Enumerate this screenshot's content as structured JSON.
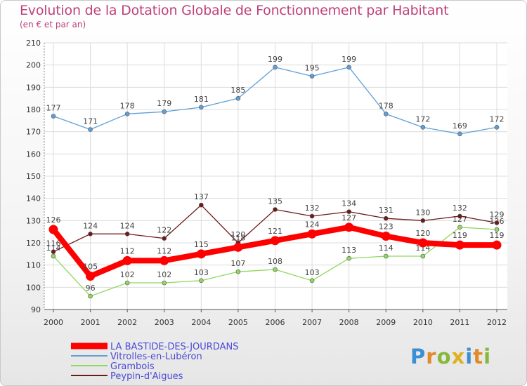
{
  "title": "Evolution de la Dotation Globale de Fonctionnement par Habitant",
  "subtitle": "(en € et par an)",
  "logo": "Proxiti",
  "chart_data": {
    "type": "line",
    "title": "Evolution de la Dotation Globale de Fonctionnement par Habitant",
    "subtitle": "(en € et par an)",
    "xlabel": "",
    "ylabel": "",
    "x": [
      "2000",
      "2001",
      "2002",
      "2003",
      "2004",
      "2005",
      "2006",
      "2007",
      "2008",
      "2009",
      "2010",
      "2011",
      "2012"
    ],
    "ylim": [
      90,
      210
    ],
    "yticks": [
      90,
      100,
      110,
      120,
      130,
      140,
      150,
      160,
      170,
      180,
      190,
      200,
      210
    ],
    "grid": true,
    "legend_position": "bottom-left",
    "series": [
      {
        "name": "LA BASTIDE-DES-JOURDANS",
        "color": "#ff0000",
        "values": [
          126,
          105,
          112,
          112,
          115,
          118,
          121,
          124,
          127,
          123,
          120,
          119,
          119
        ]
      },
      {
        "name": "Vitrolles-en-Lubéron",
        "color": "#5f9fd6",
        "values": [
          177,
          171,
          178,
          179,
          181,
          185,
          199,
          195,
          199,
          178,
          172,
          169,
          172
        ]
      },
      {
        "name": "Grambois",
        "color": "#90d860",
        "values": [
          114,
          96,
          102,
          102,
          103,
          107,
          108,
          103,
          113,
          114,
          114,
          127,
          126
        ]
      },
      {
        "name": "Peypin-d'Aigues",
        "color": "#6e1a1a",
        "values": [
          116,
          124,
          124,
          122,
          137,
          120,
          135,
          132,
          134,
          131,
          130,
          132,
          129
        ]
      }
    ]
  }
}
